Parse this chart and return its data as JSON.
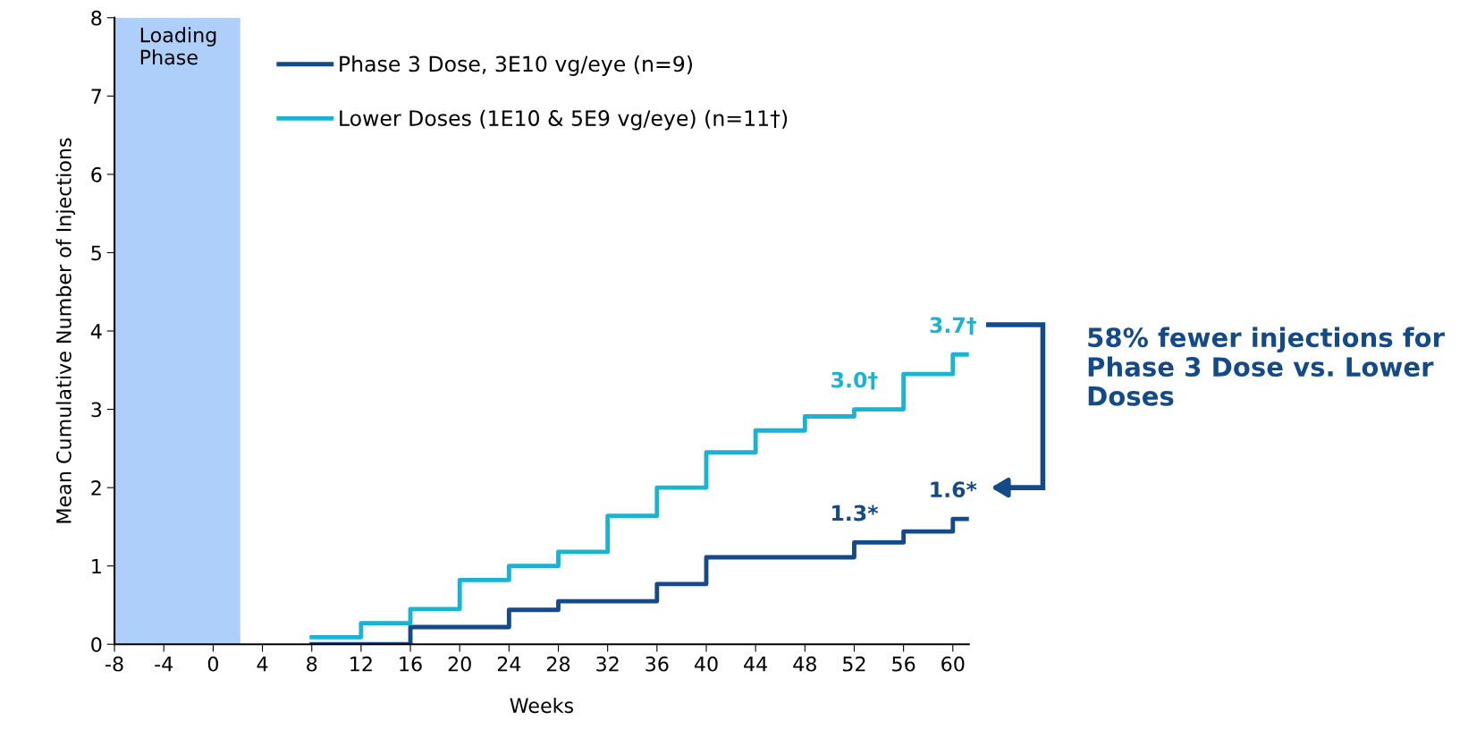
{
  "chart_data": {
    "type": "step",
    "xlabel": "Weeks",
    "ylabel": "Mean Cumulative Number of Injections",
    "xlim": [
      -8,
      61.3
    ],
    "ylim": [
      0,
      8
    ],
    "xticks": [
      -8,
      -4,
      0,
      4,
      8,
      12,
      16,
      20,
      24,
      28,
      32,
      36,
      40,
      44,
      48,
      52,
      56,
      60
    ],
    "yticks": [
      0,
      1,
      2,
      3,
      4,
      5,
      6,
      7,
      8
    ],
    "grid": false,
    "legend": "top left",
    "series": [
      {
        "name": "Phase 3 Dose, 3E10 vg/eye (n=9)",
        "color": "#144a87",
        "x": [
          8,
          12,
          16,
          20,
          24,
          28,
          32,
          36,
          40,
          44,
          48,
          52,
          56,
          60,
          61.3
        ],
        "values": [
          0,
          0,
          0.22,
          0.22,
          0.44,
          0.55,
          0.55,
          0.77,
          1.11,
          1.11,
          1.11,
          1.3,
          1.44,
          1.6,
          1.6
        ],
        "value_labels": [
          null,
          null,
          null,
          null,
          null,
          null,
          null,
          null,
          null,
          null,
          null,
          "1.3*",
          null,
          "1.6*",
          null
        ]
      },
      {
        "name": "Lower Doses (1E10 & 5E9 vg/eye) (n=11†)",
        "color": "#1ab3d1",
        "x": [
          8,
          12,
          16,
          20,
          24,
          28,
          32,
          36,
          40,
          44,
          48,
          52,
          56,
          60,
          61.3
        ],
        "values": [
          0.09,
          0.27,
          0.45,
          0.82,
          1.0,
          1.18,
          1.64,
          2.0,
          2.45,
          2.73,
          2.91,
          3.0,
          3.45,
          3.7,
          3.7
        ],
        "value_labels": [
          null,
          null,
          null,
          null,
          null,
          null,
          null,
          null,
          null,
          null,
          null,
          "3.0†",
          null,
          "3.7†",
          null
        ]
      }
    ],
    "bands": [
      {
        "axis": "x",
        "from": -8,
        "to": 2.2,
        "label": "Loading Phase",
        "color": "#aecffa"
      }
    ],
    "annotations": [
      "58% fewer injections for Phase 3 Dose vs. Lower Doses"
    ]
  }
}
